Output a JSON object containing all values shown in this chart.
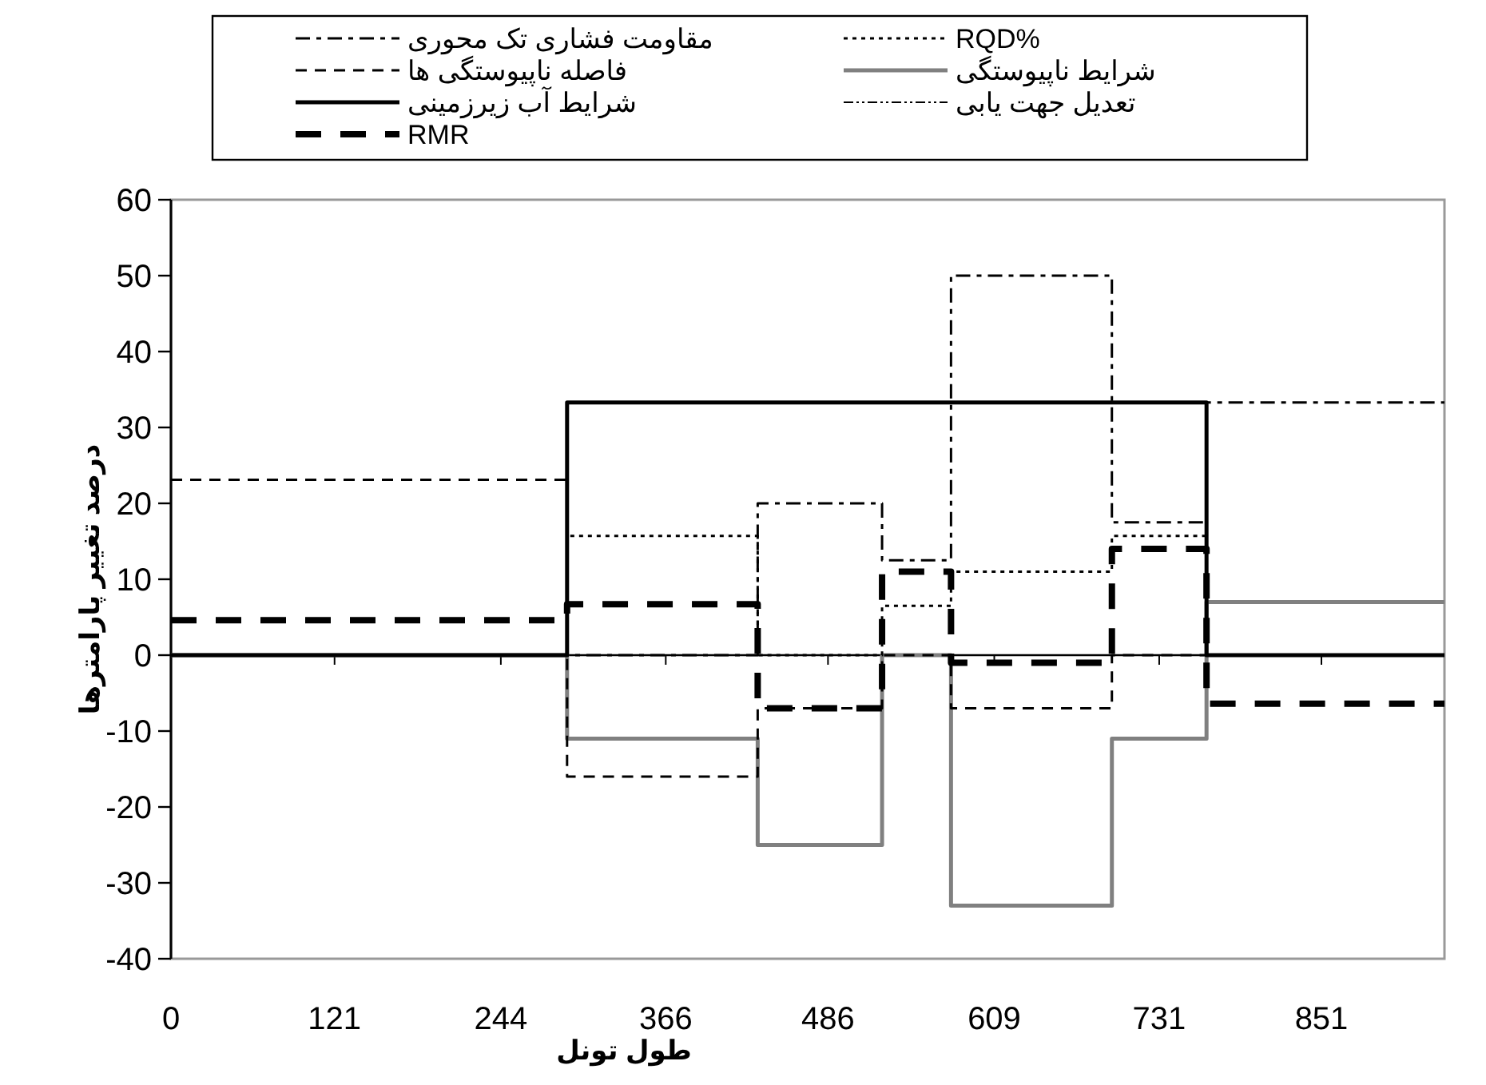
{
  "chart_data": {
    "type": "step",
    "xlabel": "طول تونل",
    "ylabel": "درصد تغییر پارامترها",
    "x": [
      0,
      293,
      434,
      526,
      577,
      696,
      766,
      942
    ],
    "xlim": [
      0,
      942
    ],
    "xticks": [
      0,
      121,
      244,
      366,
      486,
      609,
      731,
      851
    ],
    "ylim": [
      -40,
      60
    ],
    "yticks": [
      -40,
      -30,
      -20,
      -10,
      0,
      10,
      20,
      30,
      40,
      50,
      60
    ],
    "legend": "top",
    "marker": "none",
    "series": [
      {
        "name": "مقاومت فشاری تک محوری",
        "color": "#000000",
        "line_style": "dashdot",
        "values": [
          0,
          0,
          20,
          12.5,
          50,
          17.5,
          33.3,
          33.3
        ]
      },
      {
        "name": "RQD%",
        "color": "#000000",
        "line_style": "dotted",
        "values": [
          0,
          15.7,
          0,
          6.5,
          11,
          15.7,
          0,
          0
        ]
      },
      {
        "name": "فاصله ناپیوستگی ها",
        "color": "#000000",
        "line_style": "dashed",
        "values": [
          23.1,
          -16,
          -7,
          0,
          -7,
          0,
          0,
          0
        ]
      },
      {
        "name": "شرایط ناپیوستگی",
        "color": "#808080",
        "line_style": "solid",
        "values": [
          0,
          -11,
          -25,
          0,
          -33,
          -11,
          7,
          7
        ]
      },
      {
        "name": "شرایط آب زیرزمینی",
        "color": "#000000",
        "line_style": "solid",
        "values": [
          0,
          33.3,
          33.3,
          33.3,
          33.3,
          33.3,
          0,
          0
        ]
      },
      {
        "name": "تعدیل جهت یابی",
        "color": "#000000",
        "line_style": "dashdotdot",
        "values": [
          null,
          null,
          null,
          null,
          null,
          null,
          null,
          null
        ]
      },
      {
        "name": "RMR",
        "color": "#000000",
        "line_style": "longdash",
        "values": [
          4.6,
          6.7,
          -7,
          11,
          -1,
          14,
          -6.4,
          -6.4
        ]
      }
    ]
  }
}
